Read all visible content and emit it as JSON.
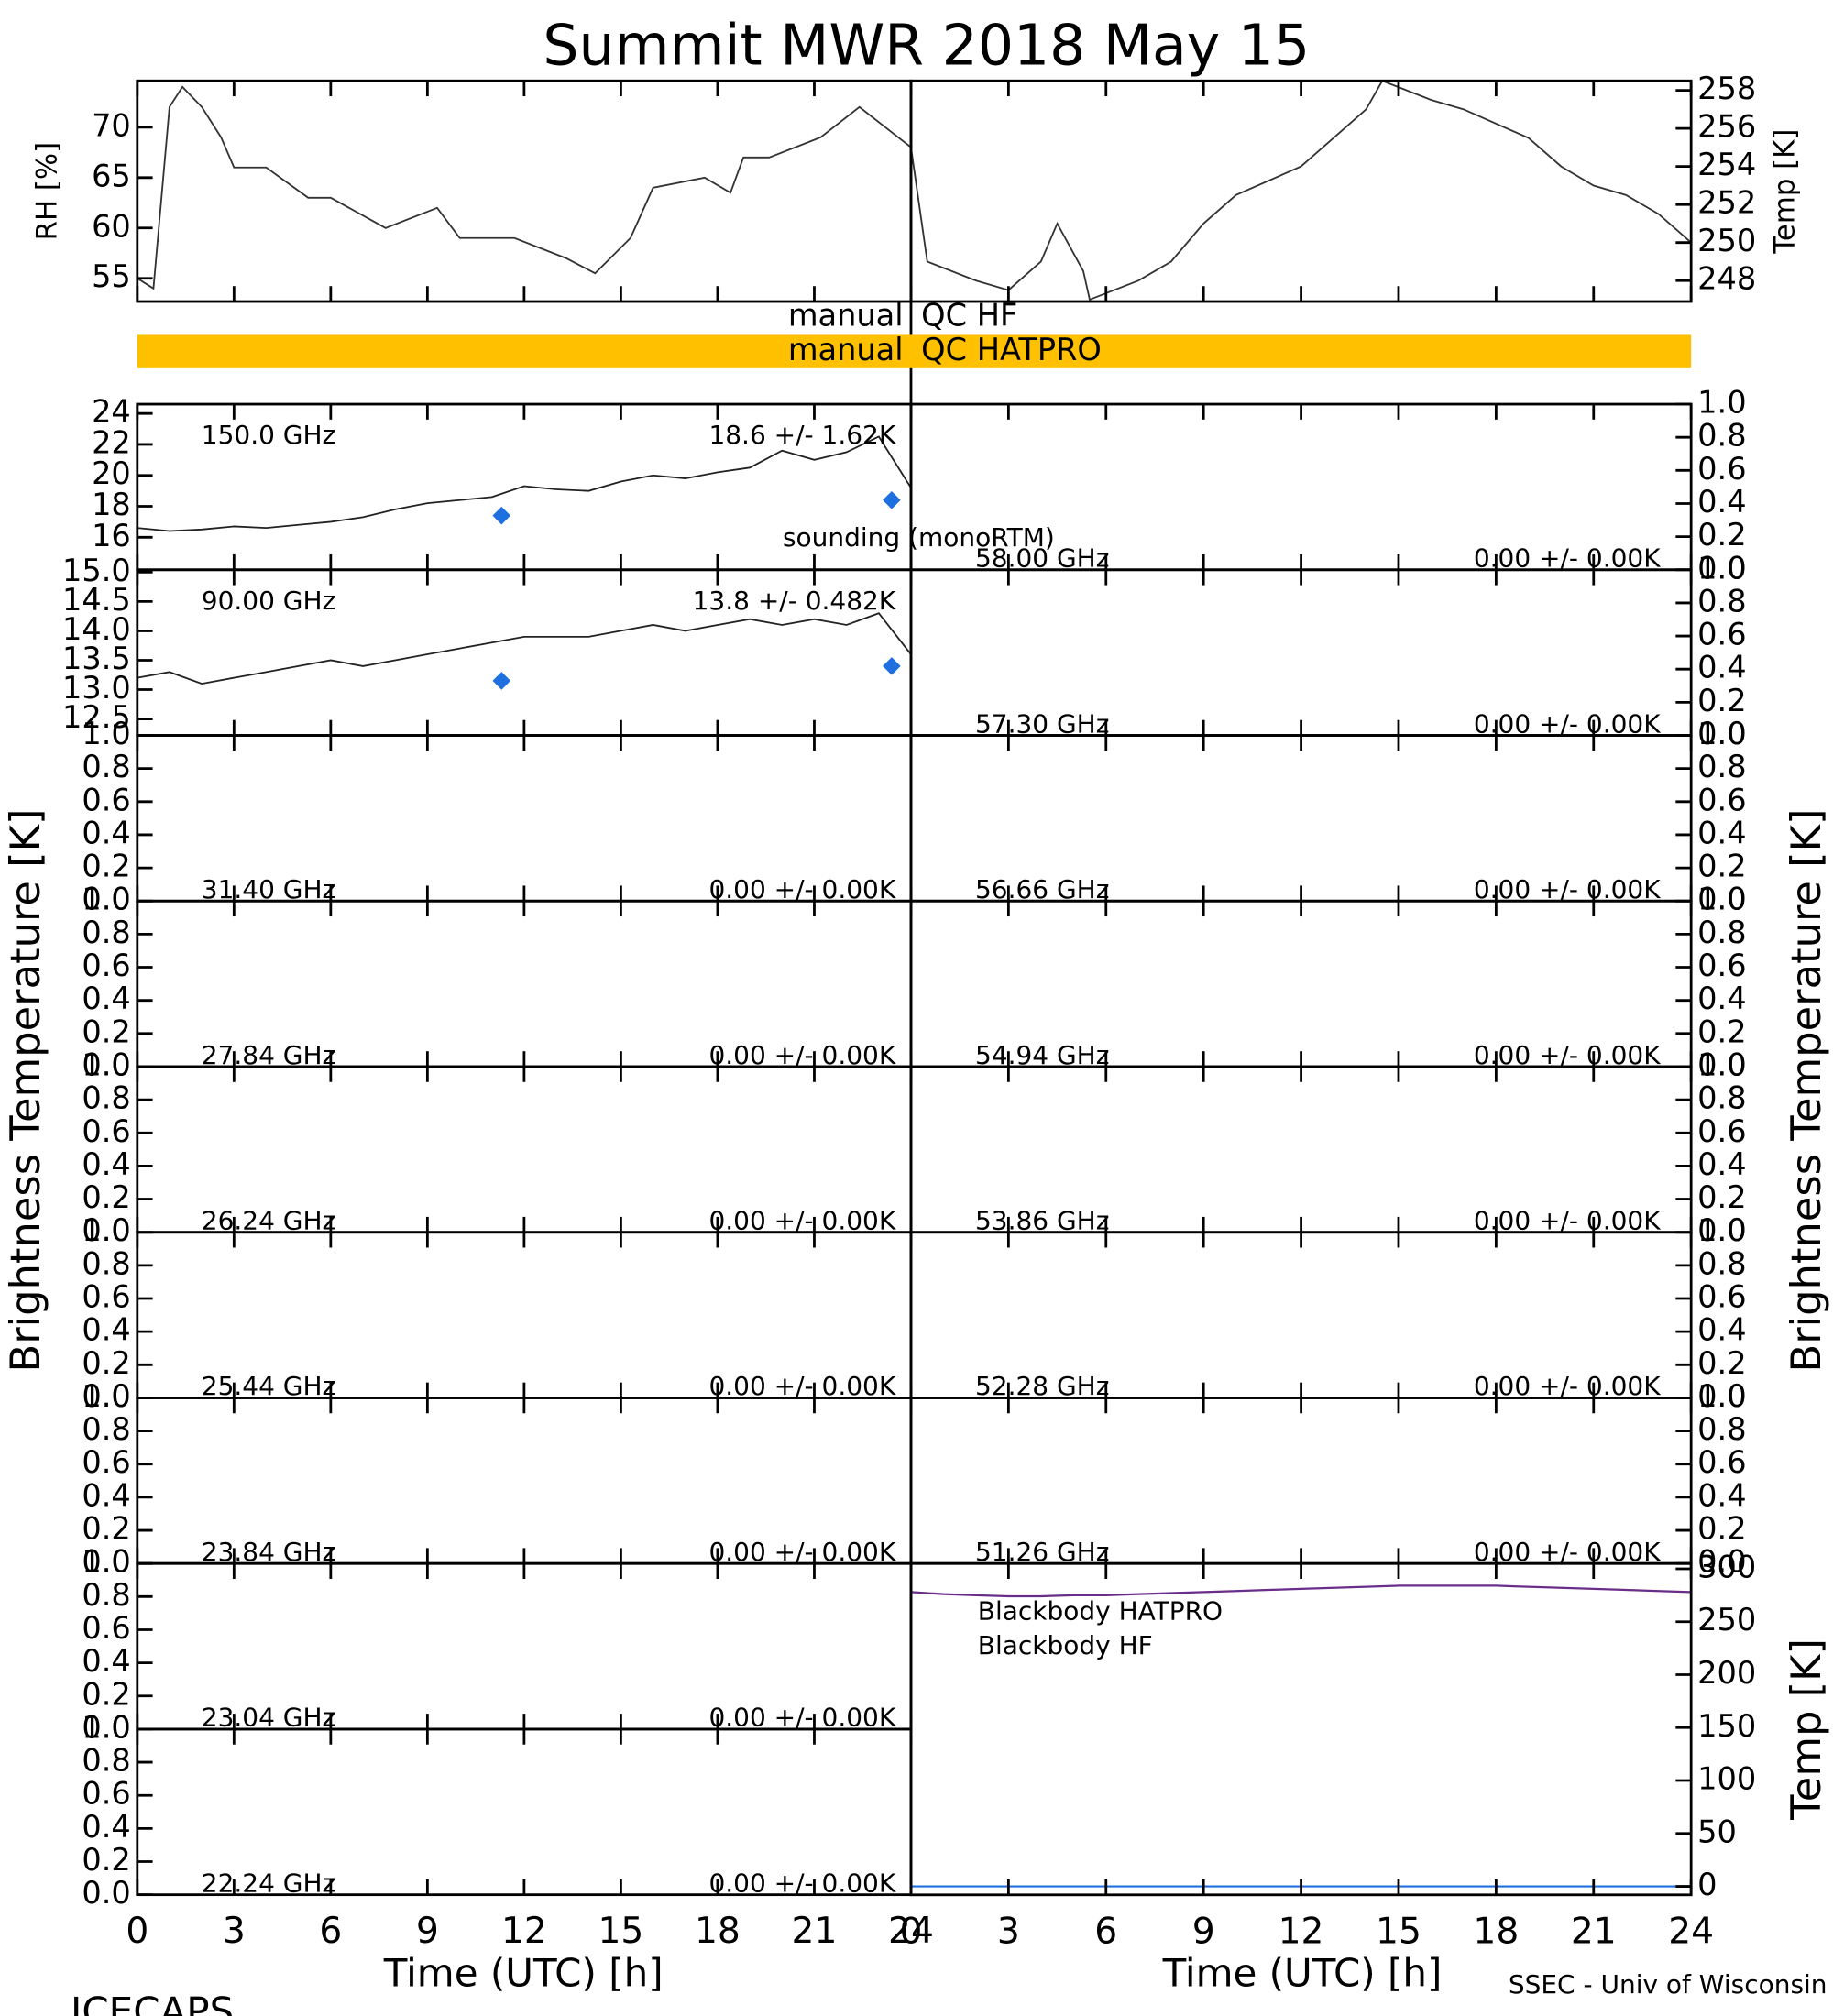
{
  "title": "Summit MWR 2018 May 15",
  "time_axis": {
    "xlim": [
      0,
      24
    ],
    "xticks": [
      0,
      3,
      6,
      9,
      12,
      15,
      18,
      21,
      24
    ],
    "label": "Time (UTC) [h]"
  },
  "bt_label": "Brightness Temperature [K]",
  "footer": {
    "left": "ICECAPS",
    "right": "SSEC - Univ of Wisconsin"
  },
  "qc": [
    {
      "flag": "manual",
      "label": "QC HF"
    },
    {
      "flag": "manual",
      "label": "QC HATPRO",
      "color": "#ffc000"
    }
  ],
  "chart_data": [
    {
      "type": "line",
      "ylabel": "RH [%]",
      "ylim": [
        52.7,
        74.6
      ],
      "yticks": [
        55,
        60,
        65,
        70
      ],
      "color": "#333333",
      "x": [
        0,
        0.5,
        1,
        1.4,
        2,
        2.6,
        3,
        4,
        5.3,
        6,
        7.7,
        9.3,
        10,
        11.7,
        13.3,
        14.2,
        15.3,
        16,
        17.6,
        18.4,
        18.8,
        19.6,
        21.2,
        22.4,
        23.6,
        24
      ],
      "values": [
        55,
        54,
        72,
        74,
        72,
        69,
        66,
        66,
        63,
        63,
        60,
        62,
        59,
        59,
        57,
        55.5,
        59,
        64,
        65,
        63.5,
        67,
        67,
        69,
        72,
        69,
        68
      ]
    },
    {
      "type": "line",
      "ylabel": "Temp [K]",
      "ylim": [
        246.9,
        258.5
      ],
      "yticks": [
        248,
        250,
        252,
        254,
        256,
        258
      ],
      "color": "#333333",
      "x": [
        0,
        0.5,
        2,
        3,
        4,
        4.5,
        5.3,
        5.5,
        7,
        8,
        9,
        10,
        12,
        13,
        14,
        14.5,
        16,
        17,
        19,
        20,
        21,
        22,
        23,
        24
      ],
      "values": [
        255,
        249,
        248,
        247.5,
        249,
        251,
        248.5,
        247,
        248,
        249,
        251,
        252.5,
        254,
        255.5,
        257,
        258.5,
        257.5,
        257,
        255.5,
        254,
        253,
        252.5,
        251.5,
        250
      ]
    },
    {
      "type": "line",
      "freq": "150.0 GHz",
      "stats": "18.6 +/- 1.62K",
      "ylim": [
        13.9,
        24.6
      ],
      "yticks": [
        16,
        18,
        20,
        22,
        24
      ],
      "color": "#222222",
      "x": [
        0,
        1,
        2,
        3,
        4,
        5,
        6,
        7,
        8,
        9,
        10,
        11,
        12,
        13,
        14,
        15,
        16,
        17,
        18,
        19,
        20,
        21,
        22,
        23,
        24
      ],
      "values": [
        16.6,
        16.4,
        16.5,
        16.7,
        16.6,
        16.8,
        17.0,
        17.3,
        17.8,
        18.2,
        18.4,
        18.6,
        19.3,
        19.1,
        19.0,
        19.6,
        20.0,
        19.8,
        20.2,
        20.5,
        21.6,
        21.0,
        21.5,
        22.5,
        19.2
      ],
      "sounding": {
        "name": "sounding (monoRTM)",
        "color": "#1e6fe0",
        "x": [
          11.3,
          23.4
        ],
        "values": [
          17.4,
          18.4
        ]
      }
    },
    {
      "type": "line",
      "freq": "90.00 GHz",
      "stats": "13.8 +/- 0.482K",
      "ylim": [
        12.22,
        15.04
      ],
      "yticks": [
        12.5,
        {
          "value": 13,
          "label": "13.0"
        },
        13.5,
        {
          "value": 14,
          "label": "14.0"
        },
        14.5,
        {
          "value": 15,
          "label": "15.0"
        }
      ],
      "color": "#222222",
      "x": [
        0,
        1,
        2,
        3,
        4,
        5,
        6,
        7,
        8,
        9,
        10,
        11,
        12,
        13,
        14,
        15,
        16,
        17,
        18,
        19,
        20,
        21,
        22,
        23,
        24
      ],
      "values": [
        13.2,
        13.3,
        13.1,
        13.2,
        13.3,
        13.4,
        13.5,
        13.4,
        13.5,
        13.6,
        13.7,
        13.8,
        13.9,
        13.9,
        13.9,
        14.0,
        14.1,
        14.0,
        14.1,
        14.2,
        14.1,
        14.2,
        14.1,
        14.3,
        13.6
      ],
      "sounding": {
        "color": "#1e6fe0",
        "x": [
          11.3,
          23.4
        ],
        "values": [
          13.15,
          13.4
        ]
      }
    },
    {
      "type": "line",
      "freq": "31.40 GHz",
      "stats": "0.00 +/- 0.00K",
      "ylim": [
        0,
        1
      ],
      "yticks": [
        {
          "value": 0,
          "label": "0.0"
        },
        0.2,
        0.4,
        0.6,
        0.8,
        {
          "value": 1,
          "label": "1.0"
        }
      ]
    },
    {
      "type": "line",
      "freq": "27.84 GHz",
      "stats": "0.00 +/- 0.00K",
      "ylim": [
        0,
        1
      ],
      "yticks": [
        {
          "value": 0,
          "label": "0.0"
        },
        0.2,
        0.4,
        0.6,
        0.8,
        {
          "value": 1,
          "label": "1.0"
        }
      ]
    },
    {
      "type": "line",
      "freq": "26.24 GHz",
      "stats": "0.00 +/- 0.00K",
      "ylim": [
        0,
        1
      ],
      "yticks": [
        {
          "value": 0,
          "label": "0.0"
        },
        0.2,
        0.4,
        0.6,
        0.8,
        {
          "value": 1,
          "label": "1.0"
        }
      ]
    },
    {
      "type": "line",
      "freq": "25.44 GHz",
      "stats": "0.00 +/- 0.00K",
      "ylim": [
        0,
        1
      ],
      "yticks": [
        {
          "value": 0,
          "label": "0.0"
        },
        0.2,
        0.4,
        0.6,
        0.8,
        {
          "value": 1,
          "label": "1.0"
        }
      ]
    },
    {
      "type": "line",
      "freq": "23.84 GHz",
      "stats": "0.00 +/- 0.00K",
      "ylim": [
        0,
        1
      ],
      "yticks": [
        {
          "value": 0,
          "label": "0.0"
        },
        0.2,
        0.4,
        0.6,
        0.8,
        {
          "value": 1,
          "label": "1.0"
        }
      ]
    },
    {
      "type": "line",
      "freq": "23.04 GHz",
      "stats": "0.00 +/- 0.00K",
      "ylim": [
        0,
        1
      ],
      "yticks": [
        {
          "value": 0,
          "label": "0.0"
        },
        0.2,
        0.4,
        0.6,
        0.8,
        {
          "value": 1,
          "label": "1.0"
        }
      ]
    },
    {
      "type": "line",
      "freq": "22.24 GHz",
      "stats": "0.00 +/- 0.00K",
      "ylim": [
        0,
        1
      ],
      "yticks": [
        {
          "value": 0,
          "label": "0.0"
        },
        0.2,
        0.4,
        0.6,
        0.8,
        {
          "value": 1,
          "label": "1.0"
        }
      ]
    },
    {
      "type": "line",
      "freq": "58.00 GHz",
      "stats": "0.00 +/- 0.00K",
      "ylim": [
        0,
        1
      ],
      "yticks": [
        {
          "value": 0,
          "label": "0.0"
        },
        0.2,
        0.4,
        0.6,
        0.8,
        {
          "value": 1,
          "label": "1.0"
        }
      ]
    },
    {
      "type": "line",
      "freq": "57.30 GHz",
      "stats": "0.00 +/- 0.00K",
      "ylim": [
        0,
        1
      ],
      "yticks": [
        {
          "value": 0,
          "label": "0.0"
        },
        0.2,
        0.4,
        0.6,
        0.8,
        {
          "value": 1,
          "label": "1.0"
        }
      ]
    },
    {
      "type": "line",
      "freq": "56.66 GHz",
      "stats": "0.00 +/- 0.00K",
      "ylim": [
        0,
        1
      ],
      "yticks": [
        {
          "value": 0,
          "label": "0.0"
        },
        0.2,
        0.4,
        0.6,
        0.8,
        {
          "value": 1,
          "label": "1.0"
        }
      ]
    },
    {
      "type": "line",
      "freq": "54.94 GHz",
      "stats": "0.00 +/- 0.00K",
      "ylim": [
        0,
        1
      ],
      "yticks": [
        {
          "value": 0,
          "label": "0.0"
        },
        0.2,
        0.4,
        0.6,
        0.8,
        {
          "value": 1,
          "label": "1.0"
        }
      ]
    },
    {
      "type": "line",
      "freq": "53.86 GHz",
      "stats": "0.00 +/- 0.00K",
      "ylim": [
        0,
        1
      ],
      "yticks": [
        {
          "value": 0,
          "label": "0.0"
        },
        0.2,
        0.4,
        0.6,
        0.8,
        {
          "value": 1,
          "label": "1.0"
        }
      ]
    },
    {
      "type": "line",
      "freq": "52.28 GHz",
      "stats": "0.00 +/- 0.00K",
      "ylim": [
        0,
        1
      ],
      "yticks": [
        {
          "value": 0,
          "label": "0.0"
        },
        0.2,
        0.4,
        0.6,
        0.8,
        {
          "value": 1,
          "label": "1.0"
        }
      ]
    },
    {
      "type": "line",
      "freq": "51.26 GHz",
      "stats": "0.00 +/- 0.00K",
      "ylim": [
        0,
        1
      ],
      "yticks": [
        {
          "value": 0,
          "label": "0.0"
        },
        0.2,
        0.4,
        0.6,
        0.8,
        {
          "value": 1,
          "label": "1.0"
        }
      ]
    },
    {
      "type": "line",
      "ylabel": "Temp [K]",
      "ylim": [
        -8,
        305
      ],
      "yticks": [
        0,
        50,
        100,
        150,
        200,
        250,
        300
      ],
      "x": [
        0,
        1,
        2,
        3,
        4,
        5,
        6,
        7,
        8,
        9,
        10,
        11,
        12,
        13,
        14,
        15,
        16,
        17,
        18,
        19,
        20,
        21,
        22,
        23,
        24
      ],
      "series": [
        {
          "name": "Blackbody HATPRO",
          "color": "#1e6fe0",
          "values": [
            0,
            0,
            0,
            0,
            0,
            0,
            0,
            0,
            0,
            0,
            0,
            0,
            0,
            0,
            0,
            0,
            0,
            0,
            0,
            0,
            0,
            0,
            0,
            0,
            0
          ]
        },
        {
          "name": "Blackbody HF",
          "color": "#6a2d8a",
          "values": [
            278,
            276,
            275,
            274,
            274,
            275,
            275,
            276,
            277,
            278,
            279,
            280,
            281,
            282,
            283,
            284,
            284,
            284,
            284,
            283,
            282,
            281,
            280,
            279,
            278
          ]
        }
      ]
    }
  ]
}
